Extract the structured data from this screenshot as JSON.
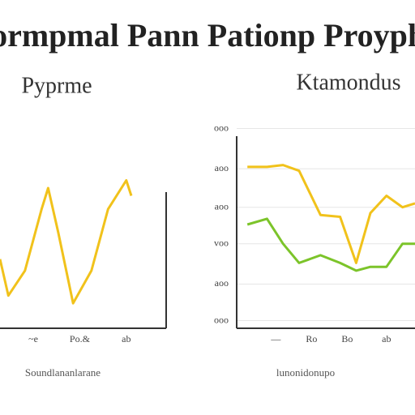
{
  "title": "Pormpmal Pann Pationp Proyphp",
  "chart_data": [
    {
      "type": "line",
      "subtitle": "Pyprme",
      "xlim": [
        0,
        100
      ],
      "ylim": [
        0,
        100
      ],
      "xticks": [
        {
          "value": 20,
          "label": "~e"
        },
        {
          "value": 48,
          "label": "Po.&"
        },
        {
          "value": 76,
          "label": "ab"
        }
      ],
      "x_label": "Soundlananlarane",
      "grid": false,
      "series": [
        {
          "name": "Pyprme",
          "color": "#f1c21b",
          "x": [
            0,
            5,
            15,
            25,
            29,
            35,
            44,
            55,
            65,
            76,
            79
          ],
          "values": [
            36,
            17,
            30,
            62,
            73,
            50,
            13,
            30,
            62,
            77,
            69
          ]
        }
      ]
    },
    {
      "type": "line",
      "subtitle": "Ktamondus",
      "xlim": [
        0,
        100
      ],
      "ylim": [
        0,
        100
      ],
      "yticks": [
        {
          "value": 104,
          "label": "ooo"
        },
        {
          "value": 83,
          "label": "aoo"
        },
        {
          "value": 63,
          "label": "aoo"
        },
        {
          "value": 44,
          "label": "voo"
        },
        {
          "value": 23,
          "label": "aoo"
        },
        {
          "value": 4,
          "label": "ooo"
        }
      ],
      "xticks": [
        {
          "value": 22,
          "label": "—"
        },
        {
          "value": 42,
          "label": "Ro"
        },
        {
          "value": 62,
          "label": "Bo"
        },
        {
          "value": 84,
          "label": "ab"
        }
      ],
      "x_label": "lunonidonupo",
      "grid": true,
      "series": [
        {
          "name": "Yellow",
          "color": "#f1c21b",
          "x": [
            6,
            17,
            26,
            35,
            47,
            58,
            67,
            75,
            84,
            93,
            100
          ],
          "values": [
            84,
            84,
            85,
            82,
            59,
            58,
            34,
            60,
            69,
            63,
            65
          ]
        },
        {
          "name": "Green",
          "color": "#7cc42a",
          "x": [
            6,
            17,
            26,
            35,
            47,
            58,
            67,
            75,
            84,
            93,
            100
          ],
          "values": [
            54,
            57,
            44,
            34,
            38,
            34,
            30,
            32,
            32,
            44,
            44
          ]
        }
      ]
    }
  ]
}
